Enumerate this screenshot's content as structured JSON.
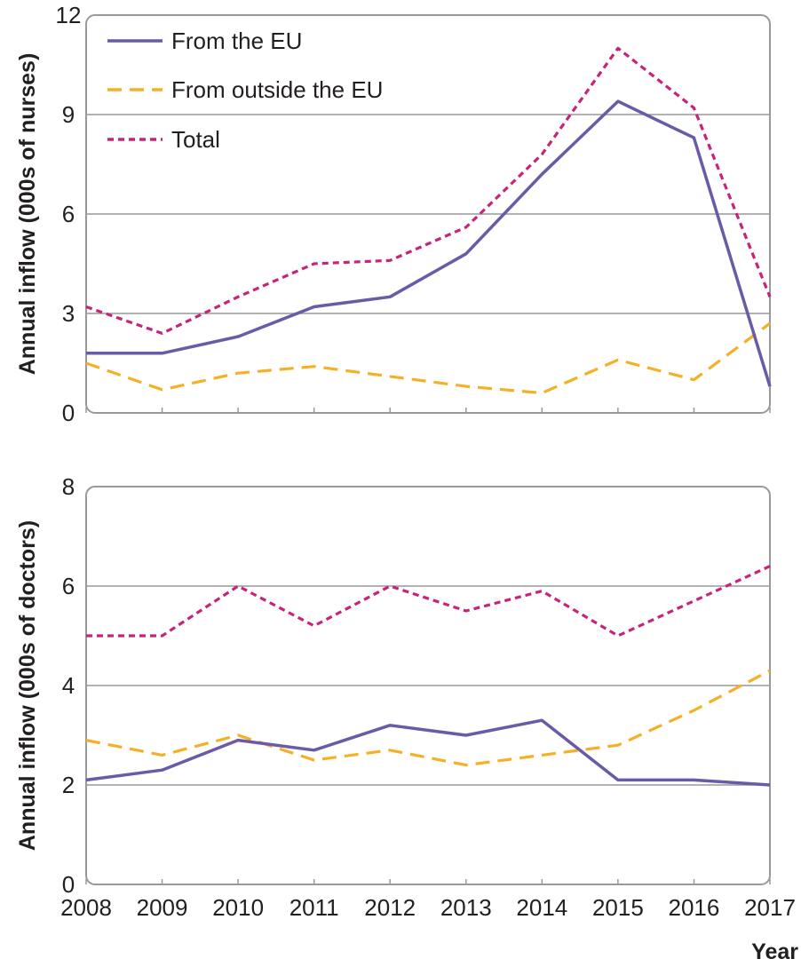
{
  "xlabel": "Year",
  "colors": {
    "eu": "#6a5aa7",
    "non_eu": "#f5b027",
    "total": "#c8237b",
    "grid": "#999999",
    "frame": "#999999"
  },
  "chart_data": [
    {
      "type": "line",
      "title": "",
      "ylabel": "Annual inflow (000s of nurses)",
      "xlabel": "",
      "ylim": [
        0,
        12
      ],
      "yticks": [
        "0",
        "3",
        "6",
        "9",
        "12"
      ],
      "x": [
        "2008",
        "2009",
        "2010",
        "2011",
        "2012",
        "2013",
        "2014",
        "2015",
        "2016",
        "2017"
      ],
      "legend": {
        "placement": "top-left"
      },
      "series": [
        {
          "name": "From the EU",
          "style": "solid",
          "values": [
            1.8,
            1.8,
            2.3,
            3.2,
            3.5,
            4.8,
            7.2,
            9.4,
            8.3,
            0.8
          ]
        },
        {
          "name": "From outside the EU",
          "style": "dashed",
          "values": [
            1.5,
            0.7,
            1.2,
            1.4,
            1.1,
            0.8,
            0.6,
            1.6,
            1.0,
            2.7
          ]
        },
        {
          "name": "Total",
          "style": "dotted",
          "values": [
            3.2,
            2.4,
            3.5,
            4.5,
            4.6,
            5.6,
            7.8,
            11.0,
            9.2,
            3.5
          ]
        }
      ]
    },
    {
      "type": "line",
      "title": "",
      "ylabel": "Annual inflow (000s of doctors)",
      "xlabel": "Year",
      "ylim": [
        0,
        8
      ],
      "yticks": [
        "0",
        "2",
        "4",
        "6",
        "8"
      ],
      "x": [
        "2008",
        "2009",
        "2010",
        "2011",
        "2012",
        "2013",
        "2014",
        "2015",
        "2016",
        "2017"
      ],
      "series": [
        {
          "name": "From the EU",
          "style": "solid",
          "values": [
            2.1,
            2.3,
            2.9,
            2.7,
            3.2,
            3.0,
            3.3,
            2.1,
            2.1,
            2.0
          ]
        },
        {
          "name": "From outside the EU",
          "style": "dashed",
          "values": [
            2.9,
            2.6,
            3.0,
            2.5,
            2.7,
            2.4,
            2.6,
            2.8,
            3.5,
            4.3
          ]
        },
        {
          "name": "Total",
          "style": "dotted",
          "values": [
            5.0,
            5.0,
            6.0,
            5.2,
            6.0,
            5.5,
            5.9,
            5.0,
            5.7,
            6.4
          ]
        }
      ]
    }
  ]
}
